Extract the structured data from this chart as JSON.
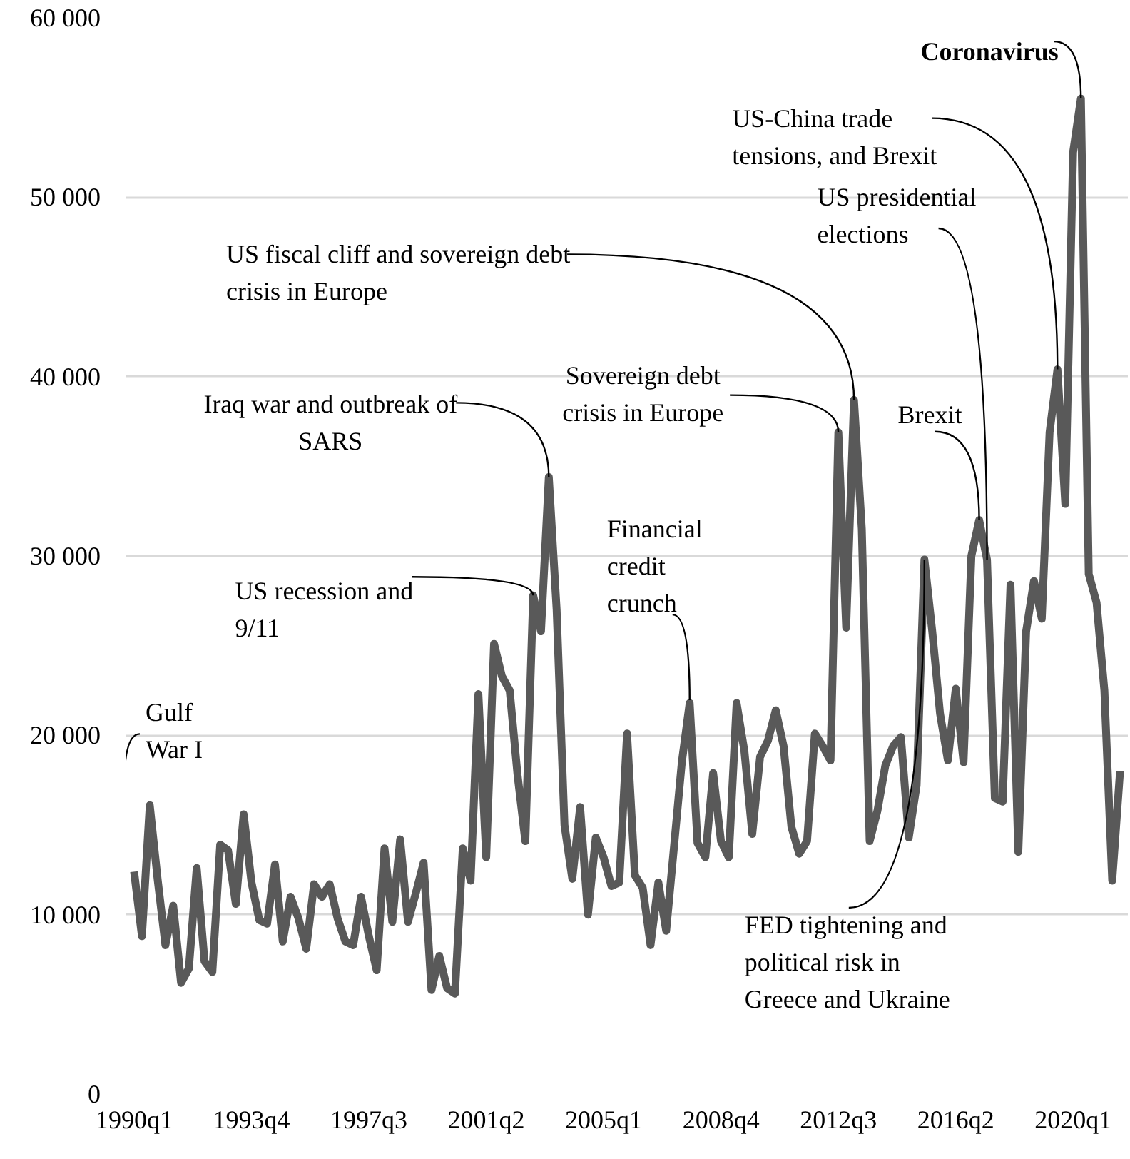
{
  "chart_data": {
    "type": "line",
    "x": [
      "1990-01",
      "1990-04",
      "1990-07",
      "1990-10",
      "1991-01",
      "1991-04",
      "1991-07",
      "1991-10",
      "1992-01",
      "1992-04",
      "1992-07",
      "1992-10",
      "1993-01",
      "1993-04",
      "1993-07",
      "1993-10",
      "1994-01",
      "1994-04",
      "1994-07",
      "1994-10",
      "1995-01",
      "1995-04",
      "1995-07",
      "1995-10",
      "1996-01",
      "1996-04",
      "1996-07",
      "1996-10",
      "1997-01",
      "1997-04",
      "1997-07",
      "1997-10",
      "1998-01",
      "1998-04",
      "1998-07",
      "1998-10",
      "1999-01",
      "1999-04",
      "1999-07",
      "1999-10",
      "2000-01",
      "2000-04",
      "2000-07",
      "2000-10",
      "2001-01",
      "2001-04",
      "2001-07",
      "2001-10",
      "2002-01",
      "2002-04",
      "2002-07",
      "2002-10",
      "2003-01",
      "2003-04",
      "2003-07",
      "2003-10",
      "2004-01",
      "2004-04",
      "2004-07",
      "2004-10",
      "2005-01",
      "2005-04",
      "2005-07",
      "2005-10",
      "2006-01",
      "2006-04",
      "2006-07",
      "2006-10",
      "2007-01",
      "2007-04",
      "2007-07",
      "2007-10",
      "2008-01",
      "2008-04",
      "2008-07",
      "2008-10",
      "2009-01",
      "2009-04",
      "2009-07",
      "2009-10",
      "2010-01",
      "2010-04",
      "2010-07",
      "2010-10",
      "2011-01",
      "2011-04",
      "2011-07",
      "2011-10",
      "2012-01",
      "2012-04",
      "2012-07",
      "2012-10",
      "2013-01",
      "2013-04",
      "2013-07",
      "2013-10",
      "2014-01",
      "2014-04",
      "2014-07",
      "2014-10",
      "2015-01",
      "2015-04",
      "2015-07",
      "2015-10",
      "2016-01",
      "2016-04",
      "2016-07",
      "2016-10",
      "2017-01",
      "2017-04",
      "2017-07",
      "2017-10",
      "2018-01",
      "2018-04",
      "2018-07",
      "2018-10",
      "2019-01",
      "2019-04",
      "2019-07",
      "2019-10",
      "2020-01",
      "2020-04",
      "2020-07",
      "2020-10",
      "2021-01",
      "2021-04",
      "2021-07"
    ],
    "series": [
      {
        "color": "#595959",
        "values": [
          12400,
          8800,
          16100,
          12000,
          8300,
          10500,
          6200,
          7000,
          12600,
          7400,
          6800,
          13900,
          13600,
          10600,
          15600,
          11800,
          9700,
          9500,
          12800,
          8500,
          11000,
          9800,
          8100,
          11700,
          11000,
          11700,
          9800,
          8500,
          8300,
          11000,
          8800,
          6900,
          13700,
          9600,
          14200,
          9600,
          11200,
          12900,
          5800,
          7700,
          5900,
          5600,
          13700,
          11900,
          22300,
          13200,
          25100,
          23300,
          22500,
          17800,
          14100,
          27800,
          25800,
          34400,
          27000,
          15000,
          12000,
          16000,
          10000,
          14300,
          13200,
          11600,
          11800,
          20100,
          12200,
          11500,
          8300,
          11800,
          9100,
          13800,
          18500,
          21800,
          14000,
          13200,
          17900,
          14100,
          13200,
          21800,
          19100,
          14500,
          18800,
          19700,
          21400,
          19400,
          14900,
          13400,
          14100,
          20100,
          19400,
          18600,
          36900,
          26000,
          38700,
          31500,
          14100,
          15800,
          18300,
          19400,
          19900,
          14300,
          17200,
          29800,
          25800,
          21200,
          18600,
          22600,
          18500,
          30000,
          32000,
          29800,
          16500,
          16300,
          28400,
          13500,
          25800,
          28600,
          26500,
          36900,
          40400,
          32900,
          52500,
          55500,
          29000,
          27400,
          22500,
          11900,
          18000
        ]
      }
    ],
    "xlim": [
      "1989-10",
      "2021-10"
    ],
    "xticks": [
      {
        "value": "1990-01",
        "label": "1990q1"
      },
      {
        "value": "1993-10",
        "label": "1993q4"
      },
      {
        "value": "1997-07",
        "label": "1997q3"
      },
      {
        "value": "2001-04",
        "label": "2001q2"
      },
      {
        "value": "2005-01",
        "label": "2005q1"
      },
      {
        "value": "2008-10",
        "label": "2008q4"
      },
      {
        "value": "2012-07",
        "label": "2012q3"
      },
      {
        "value": "2016-04",
        "label": "2016q2"
      },
      {
        "value": "2020-01",
        "label": "2020q1"
      }
    ],
    "ylim": [
      0,
      60000
    ],
    "yticks": [
      {
        "value": 0,
        "label": "0"
      },
      {
        "value": 10000,
        "label": "10 000"
      },
      {
        "value": 20000,
        "label": "20 000"
      },
      {
        "value": 30000,
        "label": "30 000"
      },
      {
        "value": 40000,
        "label": "40 000"
      },
      {
        "value": 50000,
        "label": "50 000"
      },
      {
        "value": 60000,
        "label": "60 000"
      }
    ],
    "grid": "y",
    "annotations": [
      {
        "text": "Gulf War I",
        "x": "1990-07",
        "y": 16100
      },
      {
        "text": "US recession and 9/11",
        "x": "2002-10",
        "y": 27800
      },
      {
        "text": "Iraq war and outbreak of SARS",
        "x": "2003-04",
        "y": 34400
      },
      {
        "text": "Financial credit crunch",
        "x": "2007-10",
        "y": 21800
      },
      {
        "text": "Sovereign debt crisis in Europe",
        "x": "2012-07",
        "y": 36900
      },
      {
        "text": "US fiscal cliff and sovereign debt crisis in Europe",
        "x": "2013-01",
        "y": 38700
      },
      {
        "text": "Brexit",
        "x": "2017-01",
        "y": 32000
      },
      {
        "text": "US presidential elections",
        "x": "2017-04",
        "y": 29800
      },
      {
        "text": "US-China trade tensions, and Brexit",
        "x": "2019-07",
        "y": 40400
      },
      {
        "text": "Coronavirus",
        "x": "2020-04",
        "y": 55500
      },
      {
        "text": "FED tightening and political risk in Greece and Ukraine",
        "x": "2015-04",
        "y": 29800
      }
    ]
  }
}
